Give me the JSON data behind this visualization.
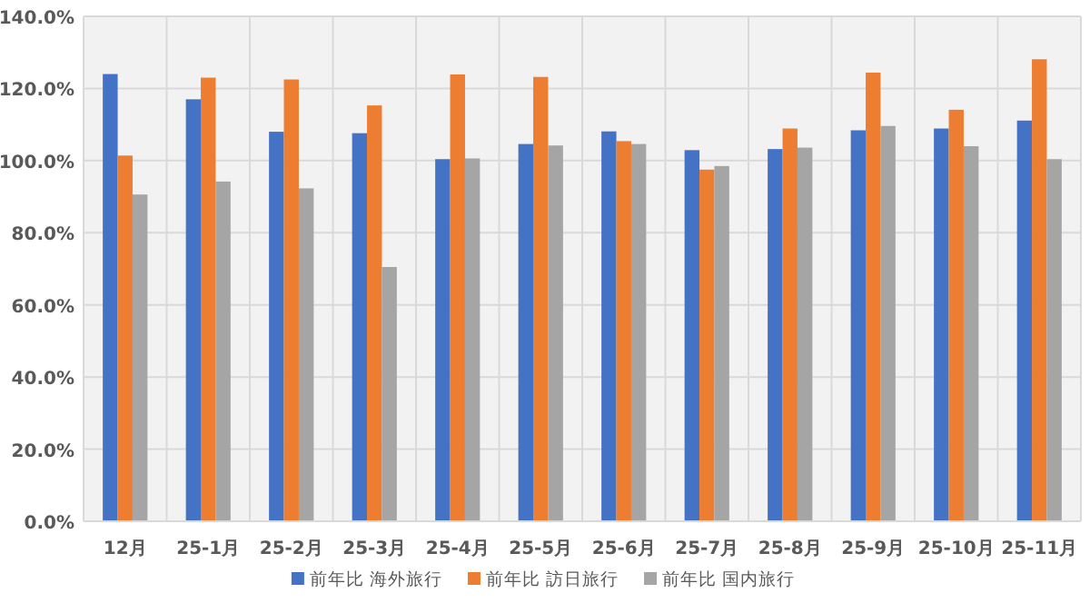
{
  "chart_data": {
    "type": "bar",
    "categories": [
      "12月",
      "25-1月",
      "25-2月",
      "25-3月",
      "25-4月",
      "25-5月",
      "25-6月",
      "25-7月",
      "25-8月",
      "25-9月",
      "25-10月",
      "25-11月"
    ],
    "series": [
      {
        "name": "前年比 海外旅行",
        "color": "#4472c4",
        "values": [
          124,
          117,
          108,
          107.6,
          100.4,
          104.6,
          108.1,
          102.9,
          103.2,
          108.4,
          108.9,
          111.1
        ]
      },
      {
        "name": "前年比 訪日旅行",
        "color": "#ed7d31",
        "values": [
          101.4,
          123,
          122.5,
          115.3,
          123.9,
          123.2,
          105.4,
          97.5,
          108.9,
          124.4,
          114.1,
          128.1
        ]
      },
      {
        "name": "前年比 国内旅行",
        "color": "#a5a5a5",
        "values": [
          90.6,
          94.2,
          92.3,
          70.5,
          100.6,
          104.2,
          104.6,
          98.5,
          103.6,
          109.6,
          104,
          100.4
        ]
      }
    ],
    "ylim": [
      0,
      140
    ],
    "yticks": [
      {
        "value": 0,
        "label": "0.0%"
      },
      {
        "value": 20,
        "label": "20.0%"
      },
      {
        "value": 40,
        "label": "40.0%"
      },
      {
        "value": 60,
        "label": "60.0%"
      },
      {
        "value": 80,
        "label": "80.0%"
      },
      {
        "value": 100,
        "label": "100.0%"
      },
      {
        "value": 120,
        "label": "120.0%"
      },
      {
        "value": 140,
        "label": "140.0%"
      }
    ],
    "grid": true,
    "legend": "bottom"
  }
}
